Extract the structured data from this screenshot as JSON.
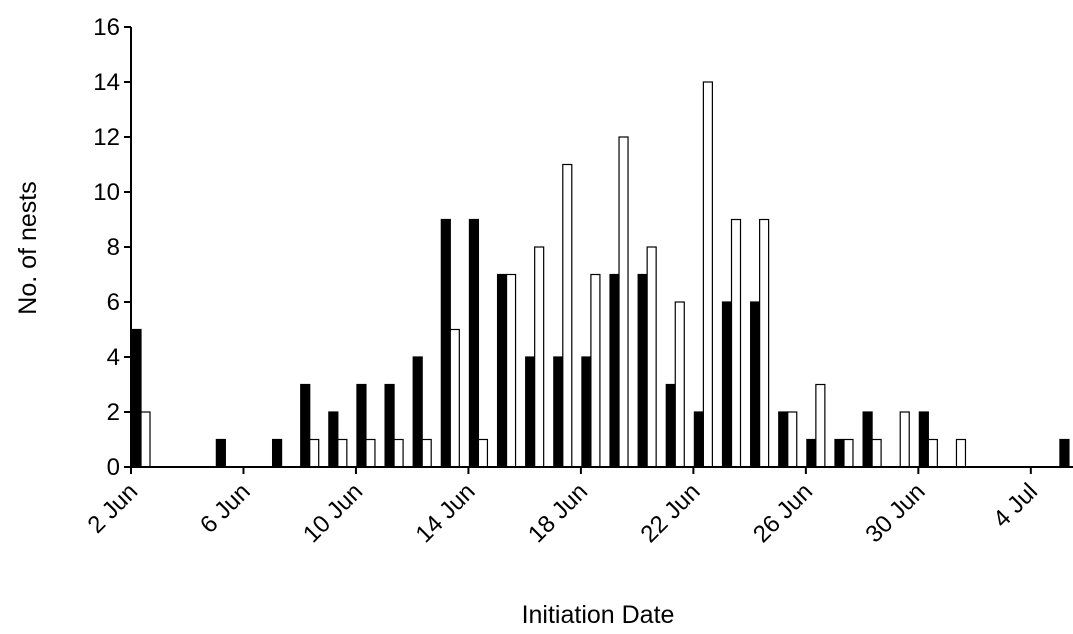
{
  "chart_data": {
    "type": "bar",
    "title": "",
    "xlabel": "Initiation Date",
    "ylabel": "No. of nests",
    "ylim": [
      0,
      16
    ],
    "yticks": [
      "0",
      "2",
      "4",
      "6",
      "8",
      "10",
      "12",
      "14",
      "16"
    ],
    "xlim": [
      "2 Jun",
      "6 Jul"
    ],
    "xtick_labels": [
      "2 Jun",
      "6 Jun",
      "10 Jun",
      "14 Jun",
      "18 Jun",
      "22 Jun",
      "26 Jun",
      "30 Jun",
      "4 Jul"
    ],
    "grid": false,
    "legend": "none",
    "colors": {
      "series_1": "#000000",
      "series_2": "#ffffff",
      "outline": "#000000"
    },
    "categories": [
      "2 Jun",
      "3 Jun",
      "4 Jun",
      "5 Jun",
      "6 Jun",
      "7 Jun",
      "8 Jun",
      "9 Jun",
      "10 Jun",
      "11 Jun",
      "12 Jun",
      "13 Jun",
      "14 Jun",
      "15 Jun",
      "16 Jun",
      "17 Jun",
      "18 Jun",
      "19 Jun",
      "20 Jun",
      "21 Jun",
      "22 Jun",
      "23 Jun",
      "24 Jun",
      "25 Jun",
      "26 Jun",
      "27 Jun",
      "28 Jun",
      "29 Jun",
      "30 Jun",
      "1 Jul",
      "2 Jul",
      "3 Jul",
      "4 Jul",
      "5 Jul"
    ],
    "series": [
      {
        "values": [
          5,
          0,
          0,
          1,
          0,
          1,
          3,
          2,
          3,
          3,
          4,
          9,
          9,
          7,
          4,
          4,
          4,
          7,
          7,
          3,
          2,
          6,
          6,
          2,
          1,
          1,
          2,
          0,
          2,
          0,
          0,
          0,
          0,
          1
        ]
      },
      {
        "values": [
          2,
          0,
          0,
          0,
          0,
          0,
          1,
          1,
          1,
          1,
          1,
          5,
          1,
          7,
          8,
          11,
          7,
          12,
          8,
          6,
          14,
          9,
          9,
          2,
          3,
          1,
          1,
          2,
          1,
          1,
          0,
          0,
          0,
          0
        ]
      }
    ]
  }
}
